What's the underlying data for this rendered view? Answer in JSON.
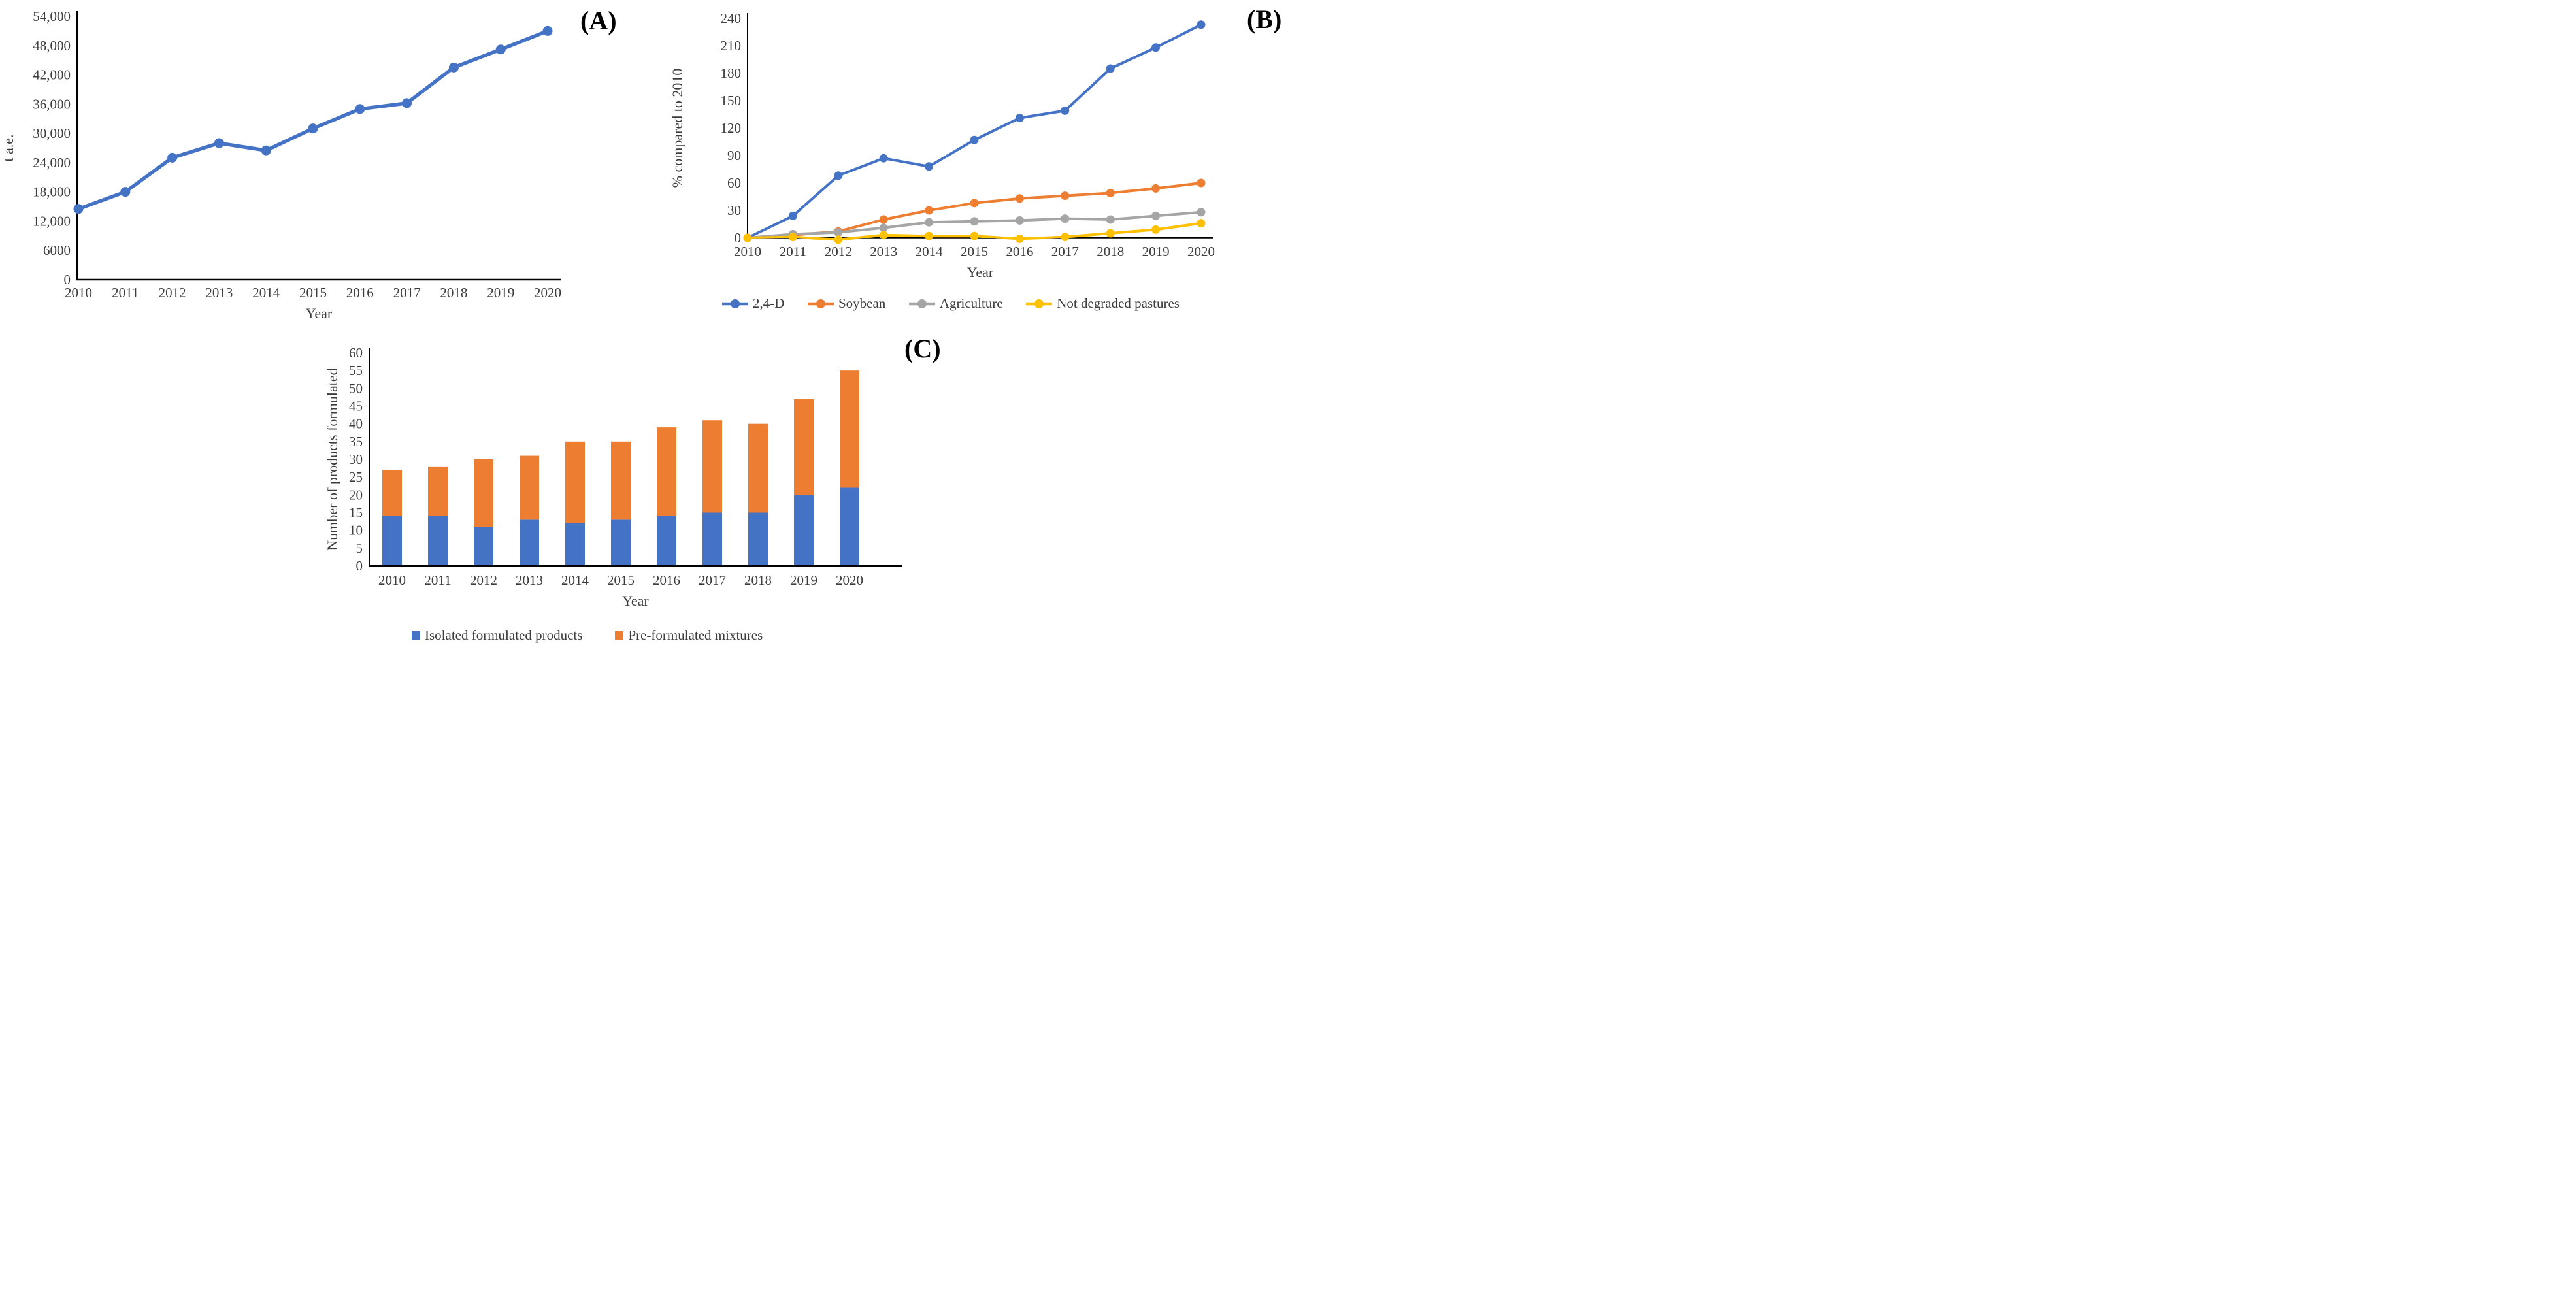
{
  "figure": {
    "panels": {
      "a": {
        "label": "(A)"
      },
      "b": {
        "label": "(B)"
      },
      "c": {
        "label": "(C)"
      }
    }
  },
  "colors": {
    "blue": "#4472C4",
    "orange": "#ED7D31",
    "gray": "#A5A5A5",
    "yellow": "#FFC000",
    "axis": "#000000",
    "text": "#3d3d3d"
  },
  "chart_data": [
    {
      "id": "A",
      "type": "line",
      "panel": "(A)",
      "xlabel": "Year",
      "ylabel": "t a.e.",
      "x": [
        "2010",
        "2011",
        "2012",
        "2013",
        "2014",
        "2015",
        "2016",
        "2017",
        "2018",
        "2019",
        "2020"
      ],
      "ylim": [
        0,
        54000
      ],
      "ytick_values": [
        0,
        6000,
        12000,
        18000,
        24000,
        30000,
        36000,
        42000,
        48000,
        54000
      ],
      "ytick_labels": [
        "0",
        "6000",
        "12,000",
        "18,000",
        "24,000",
        "30,000",
        "36,000",
        "42,000",
        "48,000",
        "54,000"
      ],
      "grid": false,
      "legend_position": "none",
      "series": [
        {
          "name": "",
          "color": "#4472C4",
          "values": [
            14500,
            18000,
            25000,
            28000,
            26500,
            31000,
            35000,
            36200,
            43500,
            47200,
            51000
          ]
        }
      ]
    },
    {
      "id": "B",
      "type": "line",
      "panel": "(B)",
      "xlabel": "Year",
      "ylabel": "% compared to 2010",
      "x": [
        "2010",
        "2011",
        "2012",
        "2013",
        "2014",
        "2015",
        "2016",
        "2017",
        "2018",
        "2019",
        "2020"
      ],
      "ylim": [
        0,
        240
      ],
      "ytick_values": [
        0,
        30,
        60,
        90,
        120,
        150,
        180,
        210,
        240
      ],
      "ytick_labels": [
        "0",
        "30",
        "60",
        "90",
        "120",
        "150",
        "180",
        "210",
        "240"
      ],
      "grid": false,
      "legend_position": "bottom",
      "series": [
        {
          "name": "2,4-D",
          "color": "#4472C4",
          "values": [
            0,
            24,
            68,
            87,
            78,
            107,
            131,
            139,
            185,
            208,
            233
          ]
        },
        {
          "name": "Soybean",
          "color": "#ED7D31",
          "values": [
            0,
            3,
            7,
            20,
            30,
            38,
            43,
            46,
            49,
            54,
            60
          ]
        },
        {
          "name": "Agriculture",
          "color": "#A5A5A5",
          "values": [
            0,
            4,
            6,
            11,
            17,
            18,
            19,
            21,
            20,
            24,
            28
          ]
        },
        {
          "name": "Not degraded pastures",
          "color": "#FFC000",
          "values": [
            0,
            1,
            -2,
            3,
            2,
            2,
            -1,
            1,
            5,
            9,
            16
          ]
        }
      ]
    },
    {
      "id": "C",
      "type": "bar",
      "stacked": true,
      "panel": "(C)",
      "xlabel": "Year",
      "ylabel": "Number of products formulated",
      "x": [
        "2010",
        "2011",
        "2012",
        "2013",
        "2014",
        "2015",
        "2016",
        "2017",
        "2018",
        "2019",
        "2020"
      ],
      "ylim": [
        0,
        60
      ],
      "ytick_values": [
        0,
        5,
        10,
        15,
        20,
        25,
        30,
        35,
        40,
        45,
        50,
        55,
        60
      ],
      "ytick_labels": [
        "0",
        "5",
        "10",
        "15",
        "20",
        "25",
        "30",
        "35",
        "40",
        "45",
        "50",
        "55",
        "60"
      ],
      "grid": false,
      "legend_position": "bottom",
      "series": [
        {
          "name": "Isolated formulated products",
          "color": "#4472C4",
          "values": [
            14,
            14,
            11,
            13,
            12,
            13,
            14,
            15,
            15,
            20,
            22
          ]
        },
        {
          "name": "Pre-formulated mixtures",
          "color": "#ED7D31",
          "values": [
            13,
            14,
            19,
            18,
            23,
            22,
            25,
            26,
            25,
            27,
            33
          ]
        }
      ],
      "stack_totals": [
        27,
        28,
        30,
        31,
        35,
        35,
        39,
        41,
        40,
        47,
        55
      ]
    }
  ]
}
